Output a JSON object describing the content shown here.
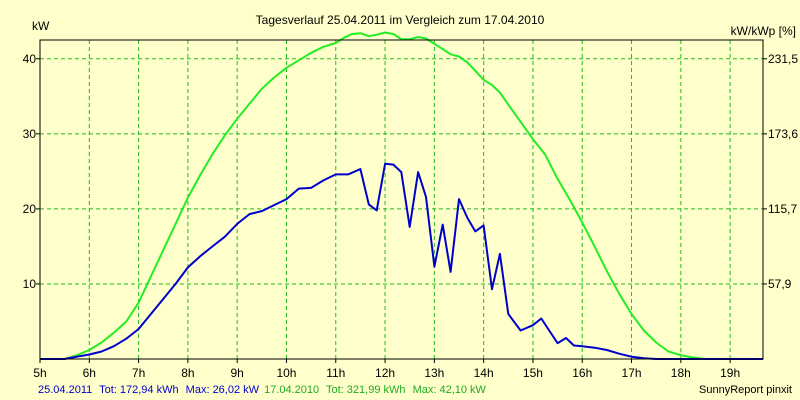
{
  "chart_data": {
    "type": "line",
    "title": "Tagesverlauf 25.04.2011 im Vergleich zum 17.04.2010",
    "ylabel_left": "kW",
    "ylabel_right": "kW/kWp [%]",
    "xlim": [
      5,
      19.667
    ],
    "ylim": [
      0,
      42.5
    ],
    "x_ticks": [
      {
        "x": 5,
        "label": "5h"
      },
      {
        "x": 6,
        "label": "6h"
      },
      {
        "x": 7,
        "label": "7h"
      },
      {
        "x": 8,
        "label": "8h"
      },
      {
        "x": 9,
        "label": "9h"
      },
      {
        "x": 10,
        "label": "10h"
      },
      {
        "x": 11,
        "label": "11h"
      },
      {
        "x": 12,
        "label": "12h"
      },
      {
        "x": 13,
        "label": "13h"
      },
      {
        "x": 14,
        "label": "14h"
      },
      {
        "x": 15,
        "label": "15h"
      },
      {
        "x": 16,
        "label": "16h"
      },
      {
        "x": 17,
        "label": "17h"
      },
      {
        "x": 18,
        "label": "18h"
      },
      {
        "x": 19,
        "label": "19h"
      }
    ],
    "y_ticks_left": [
      {
        "y": 10,
        "label": "10"
      },
      {
        "y": 20,
        "label": "20"
      },
      {
        "y": 30,
        "label": "30"
      },
      {
        "y": 40,
        "label": "40"
      }
    ],
    "y_ticks_right": [
      {
        "y": 10,
        "label": "57,9"
      },
      {
        "y": 20,
        "label": "115,7"
      },
      {
        "y": 30,
        "label": "173,6"
      },
      {
        "y": 40,
        "label": "231,5"
      }
    ],
    "grid": true,
    "series": [
      {
        "name": "17.04.2010",
        "color": "#22ee22",
        "x": [
          5.0,
          5.5,
          5.75,
          6.0,
          6.25,
          6.5,
          6.75,
          7.0,
          7.25,
          7.5,
          7.75,
          8.0,
          8.25,
          8.5,
          8.75,
          9.0,
          9.25,
          9.5,
          9.75,
          10.0,
          10.25,
          10.5,
          10.75,
          11.0,
          11.17,
          11.33,
          11.5,
          11.67,
          11.83,
          12.0,
          12.17,
          12.33,
          12.5,
          12.67,
          12.83,
          13.0,
          13.17,
          13.33,
          13.5,
          13.67,
          13.83,
          14.0,
          14.17,
          14.33,
          14.5,
          14.75,
          15.0,
          15.25,
          15.5,
          15.75,
          16.0,
          16.25,
          16.5,
          16.75,
          17.0,
          17.25,
          17.5,
          17.75,
          18.0,
          18.25,
          18.5,
          18.75,
          19.0,
          19.25,
          19.5,
          19.667
        ],
        "values": [
          0.0,
          0.0,
          0.5,
          1.2,
          2.2,
          3.5,
          5.0,
          7.5,
          11.0,
          14.5,
          18.0,
          21.5,
          24.5,
          27.3,
          29.8,
          32.0,
          34.0,
          36.0,
          37.5,
          38.8,
          39.8,
          40.8,
          41.6,
          42.1,
          42.8,
          43.3,
          43.4,
          43.0,
          43.2,
          43.5,
          43.3,
          42.6,
          42.6,
          42.9,
          42.7,
          42.0,
          41.3,
          40.6,
          40.3,
          39.5,
          38.4,
          37.2,
          36.5,
          35.5,
          33.9,
          31.6,
          29.3,
          27.2,
          24.0,
          21.2,
          18.2,
          15.0,
          11.7,
          8.7,
          6.0,
          3.8,
          2.2,
          1.0,
          0.5,
          0.2,
          0.0,
          0.0,
          0.0,
          0.0,
          0.0,
          0.0
        ]
      },
      {
        "name": "25.04.2011",
        "color": "#0000cc",
        "x": [
          5.0,
          5.5,
          5.75,
          6.0,
          6.25,
          6.5,
          6.75,
          7.0,
          7.25,
          7.5,
          7.75,
          8.0,
          8.25,
          8.5,
          8.75,
          9.0,
          9.25,
          9.5,
          9.75,
          10.0,
          10.25,
          10.5,
          10.75,
          11.0,
          11.25,
          11.5,
          11.67,
          11.83,
          12.0,
          12.17,
          12.33,
          12.5,
          12.67,
          12.83,
          13.0,
          13.17,
          13.33,
          13.5,
          13.67,
          13.83,
          14.0,
          14.17,
          14.33,
          14.5,
          14.75,
          15.0,
          15.17,
          15.33,
          15.5,
          15.67,
          15.83,
          16.0,
          16.25,
          16.5,
          16.75,
          17.0,
          17.25,
          17.5,
          17.75,
          18.0,
          18.25,
          18.5,
          18.75,
          19.0,
          19.25,
          19.5,
          19.667
        ],
        "values": [
          0.0,
          0.0,
          0.3,
          0.6,
          1.0,
          1.7,
          2.7,
          4.0,
          6.0,
          8.0,
          10.0,
          12.2,
          13.7,
          15.0,
          16.3,
          18.0,
          19.3,
          19.7,
          20.5,
          21.3,
          22.7,
          22.8,
          23.8,
          24.6,
          24.6,
          25.3,
          20.6,
          19.8,
          26.0,
          25.9,
          24.9,
          17.6,
          24.9,
          21.6,
          12.3,
          17.9,
          11.6,
          21.3,
          18.8,
          17.0,
          17.8,
          9.3,
          14.0,
          6.0,
          3.8,
          4.5,
          5.4,
          3.8,
          2.1,
          2.8,
          1.8,
          1.7,
          1.5,
          1.2,
          0.7,
          0.3,
          0.1,
          0.0,
          0.0,
          0.0,
          0.0,
          0.0,
          0.0,
          0.0,
          0.0,
          0.0,
          0.0
        ]
      }
    ],
    "footer": {
      "series1_date": "25.04.2011",
      "series1_tot": "Tot: 172,94 kWh",
      "series1_max": "Max: 26,02 kW",
      "series2_date": "17.04.2010",
      "series2_tot": "Tot: 321,99 kWh",
      "series2_max": "Max: 42,10 kW",
      "credit": "SunnyReport pinxit"
    }
  }
}
